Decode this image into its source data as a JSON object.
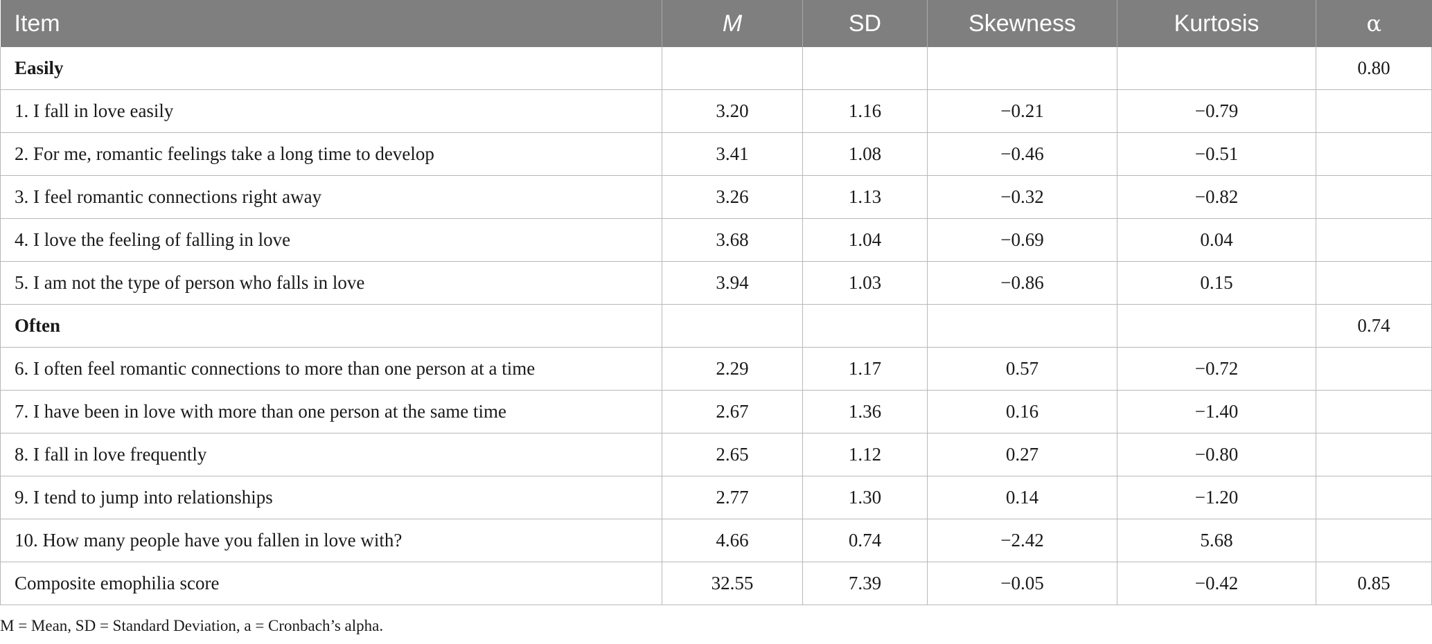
{
  "table": {
    "headers": {
      "item": "Item",
      "m": "M",
      "sd": "SD",
      "skewness": "Skewness",
      "kurtosis": "Kurtosis",
      "alpha": "α"
    },
    "rows": [
      {
        "item": "Easily",
        "m": "",
        "sd": "",
        "skewness": "",
        "kurtosis": "",
        "alpha": "0.80",
        "section": true
      },
      {
        "item": "1. I fall in love easily",
        "m": "3.20",
        "sd": "1.16",
        "skewness": "−0.21",
        "kurtosis": "−0.79",
        "alpha": ""
      },
      {
        "item": "2. For me, romantic feelings take a long time to develop",
        "m": "3.41",
        "sd": "1.08",
        "skewness": "−0.46",
        "kurtosis": "−0.51",
        "alpha": ""
      },
      {
        "item": "3. I feel romantic connections right away",
        "m": "3.26",
        "sd": "1.13",
        "skewness": "−0.32",
        "kurtosis": "−0.82",
        "alpha": ""
      },
      {
        "item": "4. I love the feeling of falling in love",
        "m": "3.68",
        "sd": "1.04",
        "skewness": "−0.69",
        "kurtosis": "0.04",
        "alpha": ""
      },
      {
        "item": "5. I am not the type of person who falls in love",
        "m": "3.94",
        "sd": "1.03",
        "skewness": "−0.86",
        "kurtosis": "0.15",
        "alpha": ""
      },
      {
        "item": "Often",
        "m": "",
        "sd": "",
        "skewness": "",
        "kurtosis": "",
        "alpha": "0.74",
        "section": true
      },
      {
        "item": "6. I often feel romantic connections to more than one person at a time",
        "m": "2.29",
        "sd": "1.17",
        "skewness": "0.57",
        "kurtosis": "−0.72",
        "alpha": ""
      },
      {
        "item": "7. I have been in love with more than one person at the same time",
        "m": "2.67",
        "sd": "1.36",
        "skewness": "0.16",
        "kurtosis": "−1.40",
        "alpha": ""
      },
      {
        "item": "8. I fall in love frequently",
        "m": "2.65",
        "sd": "1.12",
        "skewness": "0.27",
        "kurtosis": "−0.80",
        "alpha": ""
      },
      {
        "item": "9. I tend to jump into relationships",
        "m": "2.77",
        "sd": "1.30",
        "skewness": "0.14",
        "kurtosis": "−1.20",
        "alpha": ""
      },
      {
        "item": "10. How many people have you fallen in love with?",
        "m": "4.66",
        "sd": "0.74",
        "skewness": "−2.42",
        "kurtosis": "5.68",
        "alpha": ""
      },
      {
        "item": "Composite emophilia score",
        "m": "32.55",
        "sd": "7.39",
        "skewness": "−0.05",
        "kurtosis": "−0.42",
        "alpha": "0.85"
      }
    ]
  },
  "note": "M = Mean, SD = Standard Deviation, a = Cronbach’s alpha."
}
